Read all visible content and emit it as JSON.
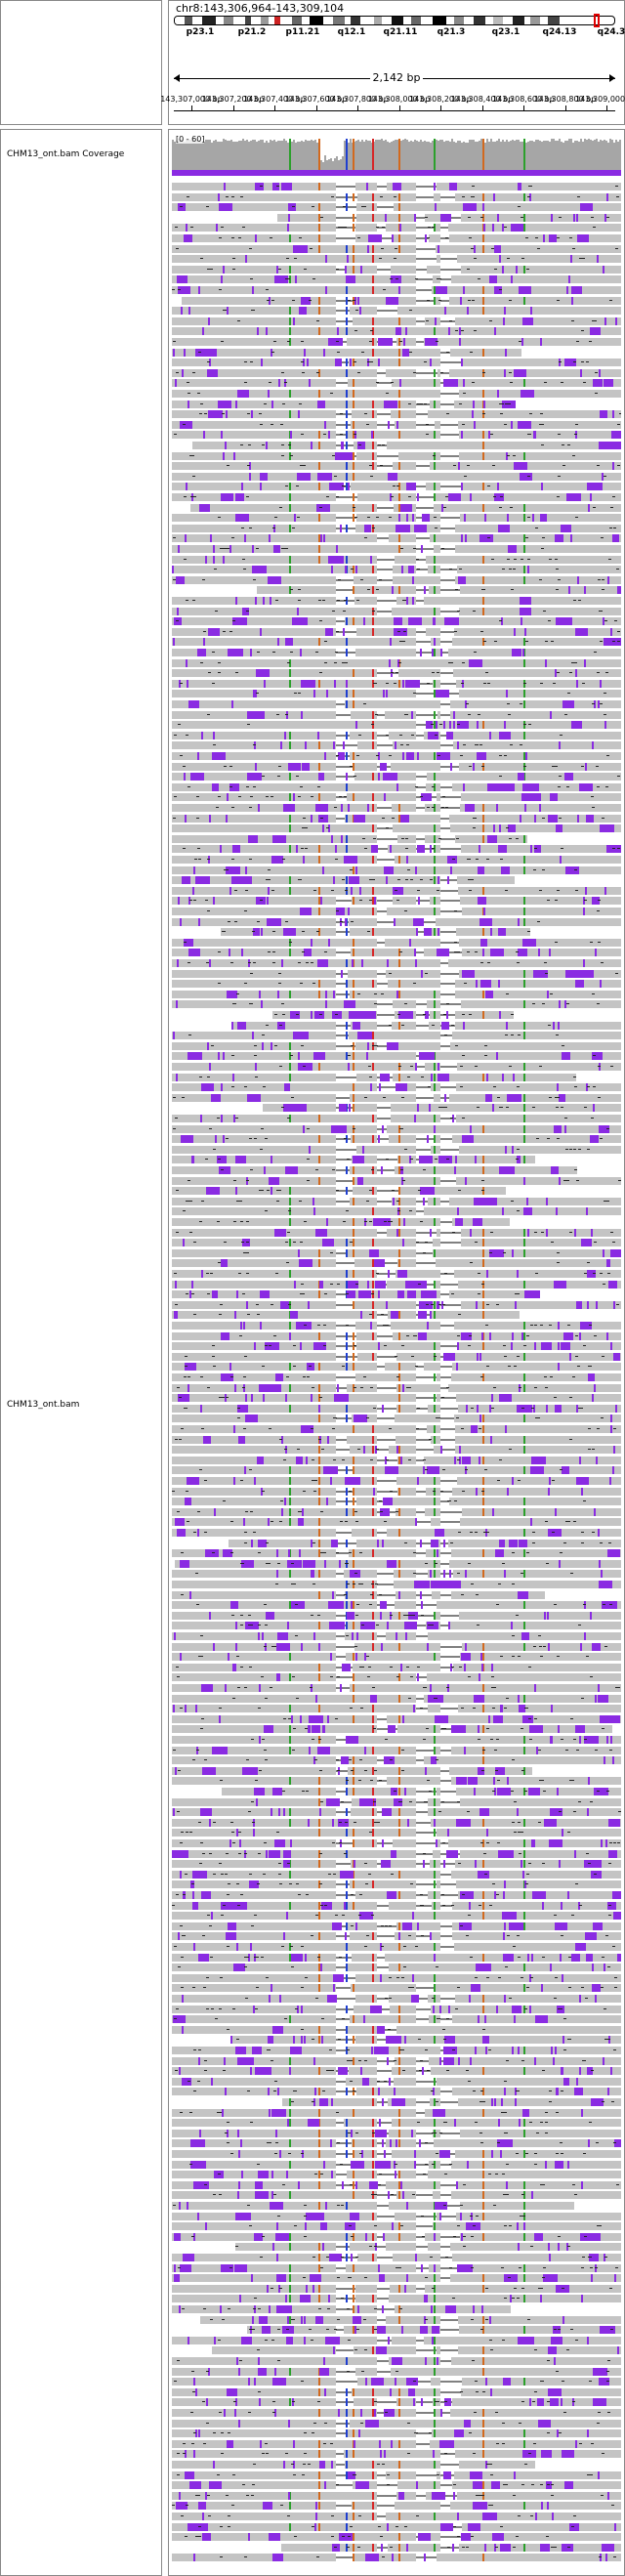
{
  "header": {
    "locus": "chr8:143,306,964-143,309,104",
    "span": "2,142 bp"
  },
  "ideogram": {
    "band_labels": [
      "p23.1",
      "p21.2",
      "p11.21",
      "q12.1",
      "q21.11",
      "q21.3",
      "q23.1",
      "q24.13",
      "q24.3"
    ]
  },
  "ruler": {
    "tick_labels": [
      "143,307,000 bp",
      "143,307,200 bp",
      "143,307,400 bp",
      "143,307,600 bp",
      "143,307,800 bp",
      "143,308,000 bp",
      "143,308,200 bp",
      "143,308,400 bp",
      "143,308,600 bp",
      "143,308,800 bp",
      "143,309,000 bp"
    ]
  },
  "tracks": {
    "coverage_name": "CHM13_ont.bam Coverage",
    "coverage_range": "[0 - 60]",
    "alignment_name": "CHM13_ont.bam"
  },
  "colors": {
    "read": "#c4c4c4",
    "insertion": "#8a2be2",
    "deletion": "#000000",
    "mismatch_a": "#2ca02c",
    "mismatch_c": "#1f3fd0",
    "mismatch_g": "#d2691e",
    "mismatch_t": "#d62728",
    "coverage": "#a6a6a6"
  }
}
